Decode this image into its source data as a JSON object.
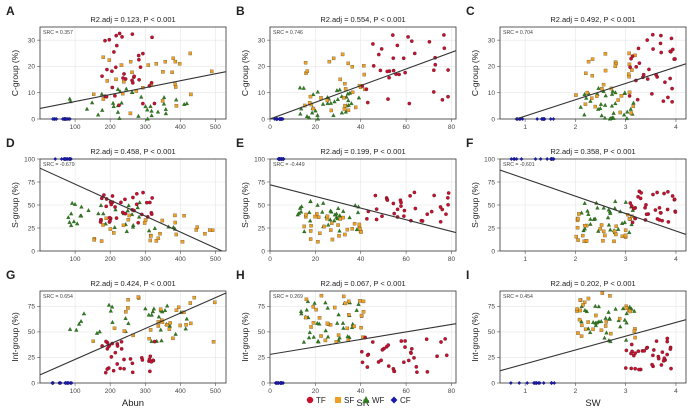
{
  "panel_letters": [
    "A",
    "B",
    "C",
    "D",
    "E",
    "F",
    "G",
    "H",
    "I"
  ],
  "stat_labels": [
    "R2.adj = 0.123, P < 0.001",
    "R2.adj = 0.554, P < 0.001",
    "R2.adj = 0.492, P < 0.001",
    "R2.adj = 0.458, P < 0.001",
    "R2.adj = 0.199, P < 0.001",
    "R2.adj = 0.358, P < 0.001",
    "R2.adj = 0.424, P < 0.001",
    "R2.adj = 0.067, P < 0.001",
    "R2.adj = 0.202, P < 0.001"
  ],
  "src_labels": [
    "SRC = 0.357",
    "SRC = 0.746",
    "SRC = 0.704",
    "SRC = -0.679",
    "SRC = -0.449",
    "SRC = -0.601",
    "SRC = 0.654",
    "SRC = 0.269",
    "SRC = 0.454"
  ],
  "ylabels": [
    "C-group (%)",
    "S-group (%)",
    "Int-group (%)"
  ],
  "xlabels": [
    "Abun",
    "SR",
    "SW"
  ],
  "legend": [
    {
      "label": "TF",
      "color": "#c8102e",
      "shape": "circle"
    },
    {
      "label": "SF",
      "color": "#f0a020",
      "shape": "square"
    },
    {
      "label": "WF",
      "color": "#2e7d1e",
      "shape": "triangle"
    },
    {
      "label": "CF",
      "color": "#1a1aa8",
      "shape": "diamond"
    }
  ],
  "chart_data": [
    {
      "type": "scatter",
      "panel": "A",
      "xlabel": "",
      "ylabel": "C-group (%)",
      "xlim": [
        0,
        530
      ],
      "ylim": [
        0,
        35
      ],
      "xticks": [
        100,
        200,
        300,
        400,
        500
      ],
      "yticks": [
        0,
        10,
        20,
        30
      ],
      "fit": [
        [
          0,
          4
        ],
        [
          530,
          18
        ]
      ]
    },
    {
      "type": "scatter",
      "panel": "B",
      "xlabel": "",
      "ylabel": "C-group (%)",
      "xlim": [
        0,
        82
      ],
      "ylim": [
        0,
        35
      ],
      "xticks": [
        0,
        20,
        40,
        60,
        80
      ],
      "yticks": [
        0,
        10,
        20,
        30
      ],
      "fit": [
        [
          0,
          0
        ],
        [
          82,
          26
        ]
      ]
    },
    {
      "type": "scatter",
      "panel": "C",
      "xlabel": "",
      "ylabel": "C-group (%)",
      "xlim": [
        0.5,
        4.2
      ],
      "ylim": [
        0,
        35
      ],
      "xticks": [
        1,
        2,
        3,
        4
      ],
      "yticks": [
        0,
        10,
        20,
        30
      ],
      "fit": [
        [
          0.5,
          -2
        ],
        [
          4.2,
          21
        ]
      ]
    },
    {
      "type": "scatter",
      "panel": "D",
      "xlabel": "",
      "ylabel": "S-group (%)",
      "xlim": [
        0,
        530
      ],
      "ylim": [
        0,
        100
      ],
      "xticks": [
        100,
        200,
        300,
        400,
        500
      ],
      "yticks": [
        0,
        25,
        50,
        75,
        100
      ],
      "fit": [
        [
          0,
          90
        ],
        [
          530,
          -2
        ]
      ]
    },
    {
      "type": "scatter",
      "panel": "E",
      "xlabel": "",
      "ylabel": "S-group (%)",
      "xlim": [
        0,
        82
      ],
      "ylim": [
        0,
        100
      ],
      "xticks": [
        0,
        20,
        40,
        60,
        80
      ],
      "yticks": [
        0,
        25,
        50,
        75,
        100
      ],
      "fit": [
        [
          0,
          72
        ],
        [
          82,
          20
        ]
      ]
    },
    {
      "type": "scatter",
      "panel": "F",
      "xlabel": "",
      "ylabel": "S-group (%)",
      "xlim": [
        0.5,
        4.2
      ],
      "ylim": [
        0,
        100
      ],
      "xticks": [
        1,
        2,
        3,
        4
      ],
      "yticks": [
        0,
        25,
        50,
        75,
        100
      ],
      "fit": [
        [
          0.5,
          88
        ],
        [
          4.2,
          18
        ]
      ]
    },
    {
      "type": "scatter",
      "panel": "G",
      "xlabel": "Abun",
      "ylabel": "Int-group (%)",
      "xlim": [
        0,
        530
      ],
      "ylim": [
        0,
        90
      ],
      "xticks": [
        100,
        200,
        300,
        400,
        500
      ],
      "yticks": [
        0,
        25,
        50,
        75
      ],
      "fit": [
        [
          0,
          8
        ],
        [
          530,
          88
        ]
      ]
    },
    {
      "type": "scatter",
      "panel": "H",
      "xlabel": "SR",
      "ylabel": "Int-group (%)",
      "xlim": [
        0,
        82
      ],
      "ylim": [
        0,
        90
      ],
      "xticks": [
        0,
        20,
        40,
        60,
        80
      ],
      "yticks": [
        0,
        25,
        50,
        75
      ],
      "fit": [
        [
          0,
          28
        ],
        [
          82,
          58
        ]
      ]
    },
    {
      "type": "scatter",
      "panel": "I",
      "xlabel": "SW",
      "ylabel": "Int-group (%)",
      "xlim": [
        0.5,
        4.2
      ],
      "ylim": [
        0,
        90
      ],
      "xticks": [
        1,
        2,
        3,
        4
      ],
      "yticks": [
        0,
        25,
        50,
        75
      ],
      "fit": [
        [
          0.5,
          12
        ],
        [
          4.2,
          62
        ]
      ]
    }
  ]
}
